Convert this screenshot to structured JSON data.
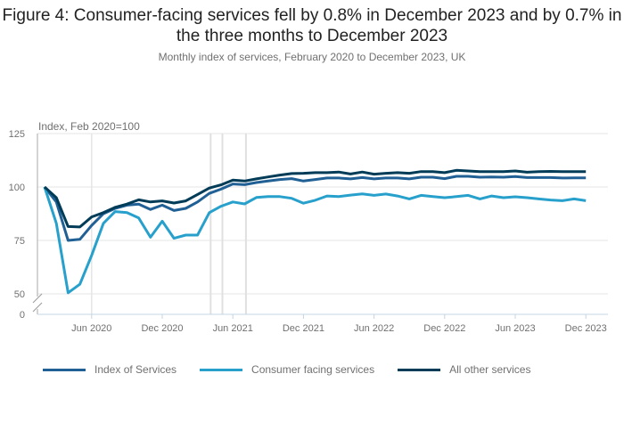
{
  "title": "Figure 4: Consumer-facing services fell by 0.8% in December 2023 and by 0.7% in the three months to December 2023",
  "subtitle": "Monthly index of services, February 2020 to December 2023, UK",
  "chart_data": {
    "type": "line",
    "title": "Figure 4: Consumer-facing services fell by 0.8% in December 2023 and by 0.7% in the three months to December 2023",
    "subtitle": "Monthly index of services, February 2020 to December 2023, UK",
    "ylabel": "Index, Feb 2020=100",
    "xlabel": "",
    "ylim": [
      50,
      125
    ],
    "y_axis_break": {
      "below": 50,
      "zero_label": "0"
    },
    "yticks": [
      0,
      50,
      75,
      100,
      125
    ],
    "ytick_labels": [
      "0",
      "50",
      "75",
      "100",
      "125"
    ],
    "xticks": [
      "Jun 2020",
      "Dec 2020",
      "Jun 2021",
      "Dec 2021",
      "Jun 2022",
      "Dec 2022",
      "Jun 2023",
      "Dec 2023"
    ],
    "grid": true,
    "legend_position": "bottom",
    "reference_lines_x": [
      "Apr 2021",
      "May 2021",
      "Jul 2021"
    ],
    "x": [
      "Feb 2020",
      "Mar 2020",
      "Apr 2020",
      "May 2020",
      "Jun 2020",
      "Jul 2020",
      "Aug 2020",
      "Sep 2020",
      "Oct 2020",
      "Nov 2020",
      "Dec 2020",
      "Jan 2021",
      "Feb 2021",
      "Mar 2021",
      "Apr 2021",
      "May 2021",
      "Jun 2021",
      "Jul 2021",
      "Aug 2021",
      "Sep 2021",
      "Oct 2021",
      "Nov 2021",
      "Dec 2021",
      "Jan 2022",
      "Feb 2022",
      "Mar 2022",
      "Apr 2022",
      "May 2022",
      "Jun 2022",
      "Jul 2022",
      "Aug 2022",
      "Sep 2022",
      "Oct 2022",
      "Nov 2022",
      "Dec 2022",
      "Jan 2023",
      "Feb 2023",
      "Mar 2023",
      "Apr 2023",
      "May 2023",
      "Jun 2023",
      "Jul 2023",
      "Aug 2023",
      "Sep 2023",
      "Oct 2023",
      "Nov 2023",
      "Dec 2023"
    ],
    "series": [
      {
        "name": "Index of Services",
        "color": "#206095",
        "values": [
          100,
          93,
          75,
          75.5,
          82,
          87.5,
          90,
          91.5,
          92,
          89.5,
          91.5,
          89,
          90,
          93,
          97,
          99,
          101.4,
          101.1,
          102.1,
          102.8,
          103.5,
          103.9,
          102.8,
          103.5,
          104.2,
          104.2,
          103.8,
          104.4,
          103.8,
          104.2,
          104.2,
          103.8,
          104.6,
          104.6,
          103.9,
          105,
          105,
          104.6,
          104.7,
          104.6,
          104.9,
          104.4,
          104.4,
          104.4,
          104.2,
          104.3,
          104.3
        ]
      },
      {
        "name": "Consumer facing services",
        "color": "#27a0cc",
        "values": [
          100,
          83,
          50.5,
          54.5,
          68,
          83,
          88.5,
          88,
          85.5,
          76.5,
          84,
          76,
          77.5,
          77.5,
          88,
          91,
          93,
          92.1,
          95.1,
          95.5,
          95.5,
          94.7,
          92.4,
          93.8,
          95.8,
          95.5,
          96.2,
          96.8,
          96.1,
          96.7,
          95.8,
          94.4,
          96.1,
          95.5,
          95,
          95.5,
          96.1,
          94.4,
          95.8,
          95,
          95.4,
          95,
          94.4,
          93.9,
          93.6,
          94.4,
          93.6
        ]
      },
      {
        "name": "All other services",
        "color": "#003c57",
        "values": [
          100,
          95,
          81.5,
          81.3,
          86,
          88,
          90.5,
          92,
          94,
          93,
          93.5,
          92.5,
          93.5,
          96.5,
          99.5,
          101,
          103.2,
          102.8,
          103.8,
          104.7,
          105.6,
          106.3,
          106.4,
          106.7,
          106.7,
          107,
          106.1,
          107,
          106,
          106.4,
          106.7,
          106.4,
          107.2,
          107.2,
          106.7,
          107.8,
          107.5,
          107.2,
          107.2,
          107.2,
          107.5,
          106.9,
          107.2,
          107.3,
          107.2,
          107.2,
          107.2
        ]
      }
    ]
  }
}
